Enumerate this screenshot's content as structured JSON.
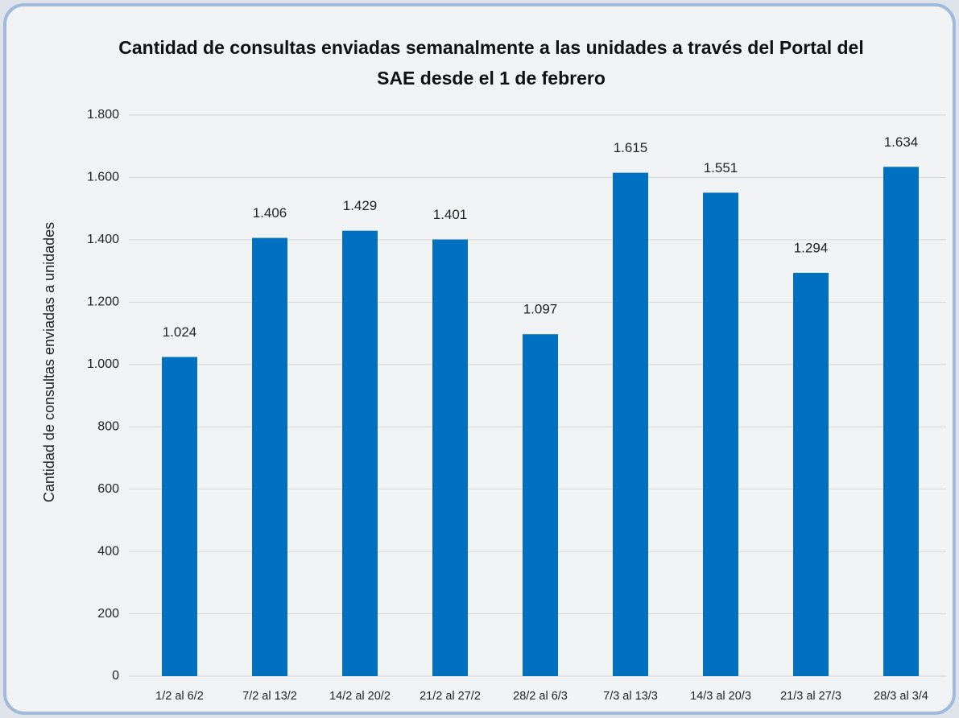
{
  "chart_data": {
    "type": "bar",
    "title": "Cantidad de consultas enviadas semanalmente a las unidades a través del Portal del SAE desde el 1 de febrero",
    "y_label": "Cantidad de consultas enviadas a unidades",
    "categories": [
      "1/2 al 6/2",
      "7/2 al 13/2",
      "14/2 al 20/2",
      "21/2 al 27/2",
      "28/2 al 6/3",
      "7/3 al 13/3",
      "14/3 al 20/3",
      "21/3 al 27/3",
      "28/3 al 3/4"
    ],
    "values": [
      1024,
      1406,
      1429,
      1401,
      1097,
      1615,
      1551,
      1294,
      1634
    ],
    "value_labels": [
      "1.024",
      "1.406",
      "1.429",
      "1.401",
      "1.097",
      "1.615",
      "1.551",
      "1.294",
      "1.634"
    ],
    "color": "#0070c0",
    "ylim": [
      0,
      1800
    ],
    "yticks": [
      0,
      200,
      400,
      600,
      800,
      {
        "value": 1000,
        "label": "1.000"
      },
      {
        "value": 1200,
        "label": "1.200"
      },
      {
        "value": 1400,
        "label": "1.400"
      },
      {
        "value": 1600,
        "label": "1.600"
      },
      {
        "value": 1800,
        "label": "1.800"
      }
    ],
    "grid": true
  }
}
